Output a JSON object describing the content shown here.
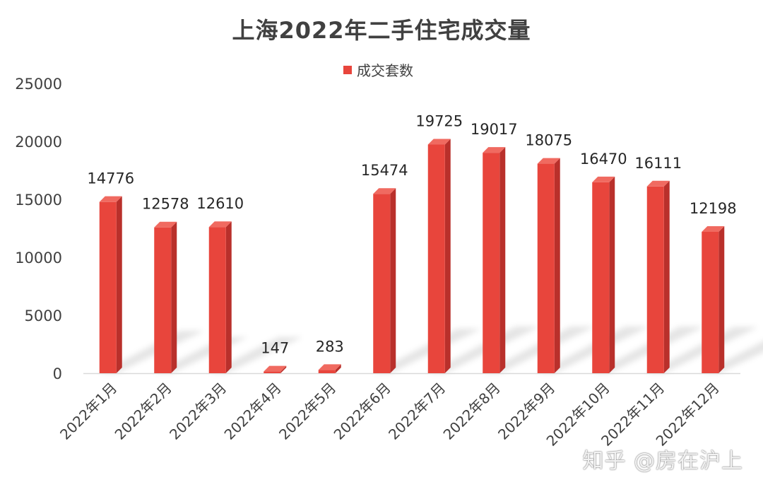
{
  "chart_data": {
    "type": "bar",
    "title": "上海2022年二手住宅成交量",
    "legend": {
      "label": "成交套数",
      "position": "top"
    },
    "categories": [
      "2022年1月",
      "2022年2月",
      "2022年3月",
      "2022年4月",
      "2022年5月",
      "2022年6月",
      "2022年7月",
      "2022年8月",
      "2022年9月",
      "2022年10月",
      "2022年11月",
      "2022年12月"
    ],
    "series": [
      {
        "name": "成交套数",
        "values": [
          14776,
          12578,
          12610,
          147,
          283,
          15474,
          19725,
          19017,
          18075,
          16470,
          16111,
          12198
        ]
      }
    ],
    "ylim": [
      0,
      25000
    ],
    "yticks": [
      0,
      5000,
      10000,
      15000,
      20000,
      25000
    ],
    "grid": false,
    "bar_color": "#e8453c",
    "bar_side_color": "#b9302b",
    "bar_top_color": "#f06a60"
  },
  "watermark": "知乎 @房在沪上"
}
